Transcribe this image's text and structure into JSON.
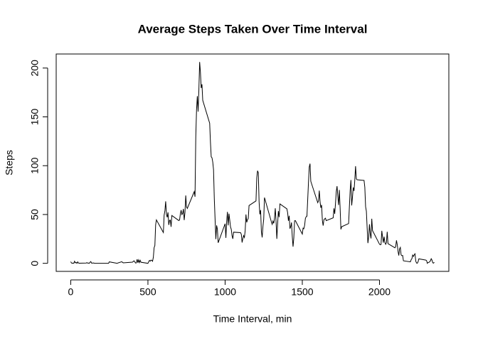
{
  "chart_data": {
    "type": "line",
    "title": "Average Steps Taken Over Time Interval",
    "x_label": "Time Interval, min",
    "y_label": "Steps",
    "color": "#000000",
    "xlim": [
      -94.2,
      2449.2
    ],
    "xticks": [
      0,
      500,
      1000,
      1500,
      2000
    ],
    "ylim": [
      -8.25,
      214.4
    ],
    "yticks": [
      0,
      50,
      100,
      150,
      200
    ],
    "x": [
      0,
      5,
      10,
      15,
      20,
      25,
      30,
      35,
      40,
      45,
      50,
      55,
      100,
      105,
      110,
      115,
      120,
      125,
      130,
      135,
      140,
      145,
      150,
      155,
      200,
      230,
      245,
      250,
      300,
      330,
      340,
      400,
      410,
      420,
      425,
      430,
      435,
      440,
      445,
      450,
      455,
      500,
      505,
      510,
      515,
      520,
      525,
      530,
      535,
      540,
      545,
      550,
      555,
      600,
      605,
      610,
      615,
      620,
      625,
      630,
      635,
      640,
      645,
      650,
      655,
      700,
      705,
      710,
      715,
      720,
      725,
      730,
      735,
      740,
      745,
      750,
      755,
      800,
      805,
      810,
      815,
      820,
      825,
      830,
      835,
      840,
      845,
      850,
      855,
      900,
      905,
      910,
      915,
      920,
      925,
      930,
      935,
      940,
      945,
      950,
      955,
      1000,
      1005,
      1010,
      1015,
      1020,
      1025,
      1030,
      1035,
      1040,
      1045,
      1050,
      1055,
      1100,
      1105,
      1110,
      1115,
      1120,
      1125,
      1130,
      1135,
      1140,
      1145,
      1150,
      1155,
      1200,
      1205,
      1210,
      1215,
      1220,
      1225,
      1230,
      1235,
      1240,
      1245,
      1250,
      1255,
      1300,
      1305,
      1310,
      1315,
      1320,
      1325,
      1330,
      1335,
      1340,
      1345,
      1350,
      1355,
      1400,
      1405,
      1410,
      1415,
      1420,
      1425,
      1430,
      1435,
      1440,
      1445,
      1450,
      1455,
      1500,
      1505,
      1510,
      1515,
      1520,
      1525,
      1530,
      1535,
      1540,
      1545,
      1550,
      1555,
      1600,
      1605,
      1610,
      1615,
      1620,
      1625,
      1630,
      1635,
      1640,
      1645,
      1650,
      1655,
      1700,
      1705,
      1710,
      1715,
      1720,
      1725,
      1730,
      1735,
      1740,
      1745,
      1750,
      1755,
      1800,
      1805,
      1810,
      1815,
      1820,
      1825,
      1830,
      1835,
      1840,
      1845,
      1850,
      1855,
      1900,
      1905,
      1910,
      1915,
      1920,
      1925,
      1930,
      1935,
      1940,
      1945,
      1950,
      1955,
      2000,
      2005,
      2010,
      2015,
      2020,
      2025,
      2030,
      2035,
      2040,
      2045,
      2050,
      2055,
      2100,
      2105,
      2110,
      2115,
      2120,
      2125,
      2130,
      2135,
      2140,
      2145,
      2150,
      2155,
      2200,
      2205,
      2210,
      2215,
      2220,
      2225,
      2230,
      2235,
      2240,
      2245,
      2250,
      2255,
      2300,
      2305,
      2310,
      2315,
      2320,
      2325,
      2330,
      2335,
      2340,
      2345,
      2350,
      2355
    ],
    "values": [
      1.7,
      0.3,
      0.1,
      0.2,
      0.1,
      2.1,
      0.5,
      0.9,
      0,
      1.5,
      0.3,
      0.1,
      0.3,
      0.7,
      0.2,
      0.3,
      0,
      1.1,
      1.8,
      0.2,
      0.2,
      0.4,
      0.3,
      0,
      0,
      0,
      0,
      1.5,
      0,
      1.6,
      0.5,
      1.2,
      2.6,
      0.3,
      0.4,
      4.1,
      0.7,
      3.5,
      0.8,
      3.1,
      1.1,
      0,
      1.6,
      3.0,
      2.2,
      3.3,
      3.0,
      2.1,
      6.1,
      16.0,
      18.3,
      39.5,
      44.5,
      31.5,
      49.3,
      53.8,
      63.5,
      50.0,
      47.1,
      52.2,
      39.3,
      44.0,
      44.2,
      37.4,
      49.0,
      43.8,
      44.4,
      50.5,
      54.5,
      49.9,
      51.0,
      55.7,
      44.3,
      52.3,
      69.5,
      57.8,
      56.2,
      73.4,
      68.2,
      129.4,
      157.5,
      171.2,
      155.4,
      177.3,
      206.2,
      195.9,
      179.6,
      183.4,
      167.0,
      143.5,
      124.0,
      109.1,
      108.1,
      103.7,
      95.9,
      66.2,
      45.2,
      24.8,
      38.8,
      35.0,
      21.1,
      40.6,
      26.1,
      42.4,
      52.7,
      38.9,
      50.8,
      44.3,
      37.4,
      34.7,
      28.3,
      25.1,
      31.9,
      31.4,
      29.7,
      21.3,
      25.5,
      28.4,
      26.5,
      33.4,
      50.0,
      42.0,
      44.6,
      46.0,
      59.2,
      63.9,
      87.7,
      94.8,
      92.8,
      63.4,
      50.2,
      54.5,
      32.4,
      26.5,
      37.7,
      45.1,
      67.3,
      42.3,
      39.9,
      43.3,
      41.0,
      46.2,
      56.4,
      42.8,
      25.1,
      40.0,
      53.5,
      47.3,
      60.8,
      55.8,
      51.9,
      43.6,
      48.7,
      35.5,
      37.5,
      41.8,
      27.5,
      17.1,
      26.1,
      43.6,
      43.8,
      30.0,
      36.1,
      35.5,
      38.8,
      45.96,
      47.8,
      48.1,
      65.3,
      82.9,
      98.7,
      102.1,
      84.0,
      62.1,
      64.1,
      74.5,
      63.2,
      56.9,
      59.8,
      43.9,
      38.6,
      44.7,
      45.5,
      46.2,
      43.7,
      46.6,
      56.3,
      50.7,
      61.2,
      73.4,
      79.0,
      68.9,
      59.7,
      75.1,
      56.5,
      34.8,
      37.5,
      40.7,
      58.0,
      74.7,
      85.3,
      59.3,
      67.8,
      77.7,
      74.2,
      85.3,
      99.5,
      86.6,
      85.6,
      84.9,
      77.8,
      58.0,
      53.4,
      36.3,
      20.7,
      27.4,
      40.0,
      30.2,
      25.5,
      45.7,
      33.5,
      19.6,
      19.0,
      19.3,
      33.3,
      26.8,
      21.2,
      27.3,
      21.3,
      19.5,
      21.3,
      32.3,
      20.2,
      15.9,
      17.2,
      23.5,
      19.2,
      12.5,
      8.0,
      14.7,
      16.3,
      8.7,
      7.8,
      8.1,
      2.6,
      1.5,
      3.7,
      4.8,
      8.5,
      7.1,
      8.7,
      9.8,
      2.2,
      0.3,
      0.1,
      1.6,
      4.6,
      3.3,
      2.8,
      0,
      0.8,
      1.0,
      1.6,
      2.6,
      4.7,
      3.3,
      0.6,
      0.2,
      1.1
    ]
  }
}
